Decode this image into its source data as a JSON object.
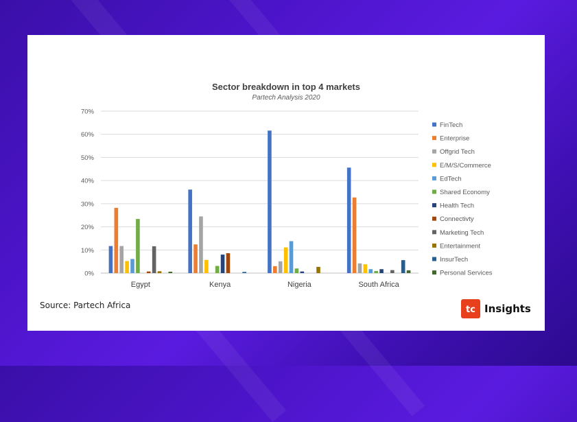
{
  "source": "Source: Partech Africa",
  "logo": {
    "name": "Insights",
    "mark_color": "#e8401c"
  },
  "chart_data": {
    "type": "bar",
    "title": "Sector breakdown in top 4 markets",
    "subtitle": "Partech Analysis 2020",
    "xlabel": "",
    "ylabel": "",
    "ylim": [
      0,
      70
    ],
    "yticks": [
      "0%",
      "10%",
      "20%",
      "30%",
      "40%",
      "50%",
      "60%",
      "70%"
    ],
    "ytick_values": [
      0,
      10,
      20,
      30,
      40,
      50,
      60,
      70
    ],
    "grid": true,
    "legend_position": "right",
    "categories": [
      "Egypt",
      "Kenya",
      "Nigeria",
      "South Africa"
    ],
    "series": [
      {
        "name": "FinTech",
        "color": "#4472c4",
        "values": [
          11.7,
          36.1,
          61.6,
          45.6
        ]
      },
      {
        "name": "Enterprise",
        "color": "#ed7d31",
        "values": [
          28.2,
          12.4,
          3.0,
          32.7
        ]
      },
      {
        "name": "Offgrid Tech",
        "color": "#a5a5a5",
        "values": [
          11.7,
          24.5,
          5.1,
          4.2
        ]
      },
      {
        "name": "E/M/S/Commerce",
        "color": "#ffc000",
        "values": [
          5.2,
          5.7,
          11.1,
          3.8
        ]
      },
      {
        "name": "EdTech",
        "color": "#5b9bd5",
        "values": [
          6.1,
          0,
          13.8,
          1.7
        ]
      },
      {
        "name": "Shared Economy",
        "color": "#70ad47",
        "values": [
          23.4,
          3.1,
          2.0,
          0.9
        ]
      },
      {
        "name": "Health Tech",
        "color": "#264478",
        "values": [
          0,
          8.0,
          0.7,
          1.7
        ]
      },
      {
        "name": "Connectivty",
        "color": "#9e480e",
        "values": [
          0.7,
          8.6,
          0,
          0
        ]
      },
      {
        "name": "Marketing Tech",
        "color": "#636363",
        "values": [
          11.6,
          0,
          0,
          1.3
        ]
      },
      {
        "name": "Entertainment",
        "color": "#997300",
        "values": [
          0.8,
          0,
          2.7,
          0
        ]
      },
      {
        "name": "InsurTech",
        "color": "#255e91",
        "values": [
          0,
          0.5,
          0,
          5.6
        ]
      },
      {
        "name": "Personal Services",
        "color": "#43682b",
        "values": [
          0.6,
          0,
          0,
          1.2
        ]
      }
    ]
  }
}
